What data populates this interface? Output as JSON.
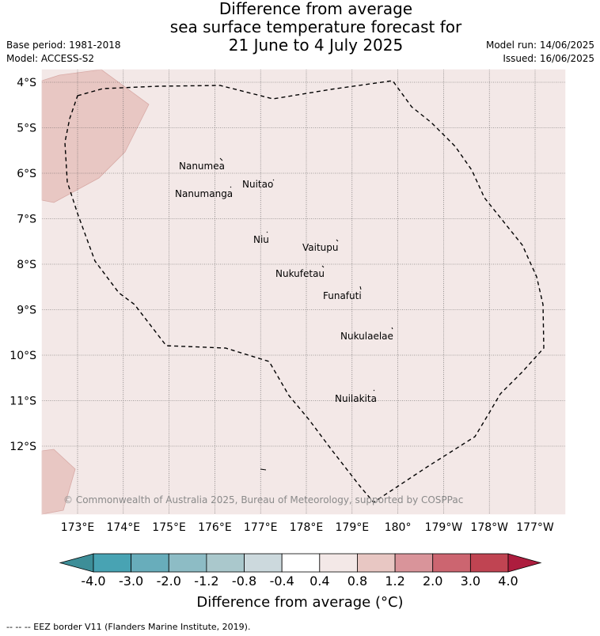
{
  "title": {
    "line1": "Difference from average",
    "line2": "sea surface temperature forecast for",
    "line3": "21 June to 4 July 2025"
  },
  "meta": {
    "base_period": "Base period: 1981-2018",
    "model": "Model: ACCESS-S2",
    "model_run": "Model run: 14/06/2025",
    "issued": "Issued: 16/06/2025"
  },
  "map": {
    "region": "Tuvalu EEZ",
    "lat_ticks": [
      "4°S",
      "5°S",
      "6°S",
      "7°S",
      "8°S",
      "9°S",
      "10°S",
      "11°S",
      "12°S"
    ],
    "lon_ticks": [
      "173°E",
      "174°E",
      "175°E",
      "176°E",
      "177°E",
      "178°E",
      "179°E",
      "180°",
      "179°W",
      "178°W",
      "177°W"
    ],
    "background_color": "#f3e8e7",
    "warm_patch_color": "#e8c7c3",
    "islands": [
      {
        "name": "Nanumea"
      },
      {
        "name": "Nuitao"
      },
      {
        "name": "Nanumanga"
      },
      {
        "name": "Niu"
      },
      {
        "name": "Vaitupu"
      },
      {
        "name": "Nukufetau"
      },
      {
        "name": "Funafuti"
      },
      {
        "name": "Nukulaelae"
      },
      {
        "name": "Nuilakita"
      }
    ],
    "copyright": "© Commonwealth of Australia 2025, Bureau of Meteorology, supported by COSPPac"
  },
  "colorbar": {
    "labels": [
      "-4.0",
      "-3.0",
      "-2.0",
      "-1.2",
      "-0.8",
      "-0.4",
      "0.4",
      "0.8",
      "1.2",
      "2.0",
      "3.0",
      "4.0"
    ],
    "colors": [
      "#3d8e98",
      "#48a3b3",
      "#68adbb",
      "#8dbcc5",
      "#aac8cc",
      "#ccd9dd",
      "#ffffff",
      "#f3e8e7",
      "#e8c7c3",
      "#d9949a",
      "#cc6570",
      "#c04452",
      "#ad1d3e"
    ],
    "title": "Difference from average (°C)"
  },
  "legend": {
    "eez_border": "-- -- -- EEZ border V11 (Flanders Marine Institute, 2019)."
  }
}
